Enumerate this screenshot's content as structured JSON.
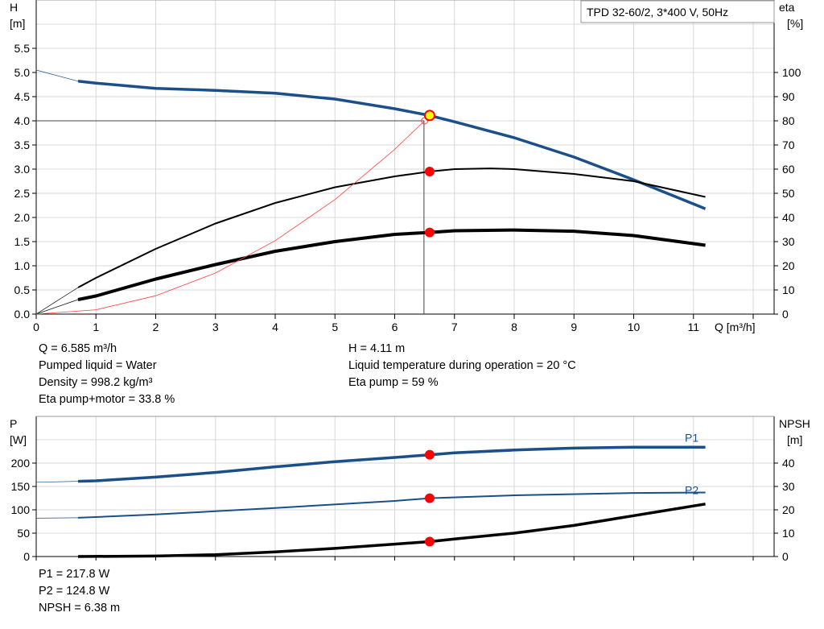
{
  "title_box": "TPD 32-60/2, 3*400 V, 50Hz",
  "chart_data": [
    {
      "type": "line",
      "xlabel": "Q [m³/h]",
      "x_ticks": [
        "0",
        "1",
        "2",
        "3",
        "4",
        "5",
        "6",
        "7",
        "8",
        "9",
        "10",
        "11"
      ],
      "xlim": [
        0,
        12.35
      ],
      "ylabel_left": [
        "H",
        "[m]"
      ],
      "ylim_left": [
        0,
        6.5
      ],
      "y_ticks_left": [
        "0.0",
        "0.5",
        "1.0",
        "1.5",
        "2.0",
        "2.5",
        "3.0",
        "3.5",
        "4.0",
        "4.5",
        "5.0",
        "5.5"
      ],
      "ylabel_right": [
        "eta",
        "[%]"
      ],
      "ylim_right": [
        0,
        130
      ],
      "y_ticks_right": [
        "0",
        "10",
        "20",
        "30",
        "40",
        "50",
        "60",
        "70",
        "80",
        "90",
        "100"
      ],
      "grid": true,
      "series": [
        {
          "key": "H",
          "axis": "left",
          "color": "#1a4f8a",
          "width": 3.5,
          "start": 0.7,
          "x": [
            0,
            0.7,
            1,
            2,
            3,
            4,
            5,
            6,
            6.585,
            7,
            8,
            9,
            10,
            11.2
          ],
          "y": [
            5.05,
            4.82,
            4.78,
            4.67,
            4.63,
            4.57,
            4.45,
            4.25,
            4.11,
            3.98,
            3.65,
            3.25,
            2.78,
            2.18
          ]
        },
        {
          "key": "eta_pump",
          "axis": "right",
          "color": "#000000",
          "width": 2,
          "start": 0.7,
          "x": [
            0,
            0.7,
            1,
            2,
            3,
            4,
            5,
            6,
            6.585,
            7,
            7.6,
            8,
            9,
            10,
            11.2
          ],
          "y": [
            0,
            11,
            15,
            27,
            37.5,
            46,
            52.5,
            57,
            59,
            60,
            60.3,
            60,
            58,
            55,
            48.5
          ]
        },
        {
          "key": "eta_pump_motor",
          "axis": "right",
          "color": "#000000",
          "width": 4,
          "start": 0.7,
          "x": [
            0,
            0.7,
            1,
            2,
            3,
            4,
            5,
            6,
            6.585,
            7,
            8,
            9,
            10,
            11.2
          ],
          "y": [
            0,
            6,
            7.5,
            14.5,
            20.5,
            26,
            30,
            33,
            33.8,
            34.5,
            34.8,
            34.3,
            32.5,
            28.5
          ]
        },
        {
          "key": "system_curve",
          "axis": "left",
          "color": "#ff4040",
          "width": 0.8,
          "start": 0,
          "x": [
            0,
            1,
            2,
            3,
            4,
            5,
            6,
            6.5
          ],
          "y": [
            0,
            0.09,
            0.38,
            0.85,
            1.52,
            2.37,
            3.41,
            4.0
          ]
        }
      ],
      "operating_point": {
        "Q": 6.585,
        "H": 4.11,
        "eta_pump": 59,
        "eta_pump_motor": 33.8
      },
      "crosshair": {
        "Q": 6.49,
        "H": 4.0
      }
    },
    {
      "type": "line",
      "xlim": [
        0,
        12.35
      ],
      "ylabel_left": [
        "P",
        "[W]"
      ],
      "ylim_left": [
        0,
        300
      ],
      "y_ticks_left": [
        "0",
        "50",
        "100",
        "150",
        "200"
      ],
      "ylabel_right": [
        "NPSH",
        "[m]"
      ],
      "ylim_right": [
        0,
        60
      ],
      "y_ticks_right": [
        "0",
        "10",
        "20",
        "30",
        "40"
      ],
      "grid": true,
      "series": [
        {
          "key": "P1",
          "name": "P1",
          "axis": "left",
          "color": "#1a4f8a",
          "width": 3.5,
          "start": 0.7,
          "x": [
            0,
            0.7,
            1,
            2,
            3,
            4,
            5,
            6,
            6.585,
            7,
            8,
            9,
            10,
            11.2
          ],
          "y": [
            159,
            161,
            162,
            170,
            180,
            192,
            203,
            212,
            217.8,
            222,
            228,
            232,
            234,
            234
          ]
        },
        {
          "key": "P2",
          "name": "P2",
          "axis": "left",
          "color": "#1a4f8a",
          "width": 2,
          "start": 0.7,
          "x": [
            0,
            0.7,
            2,
            4,
            6,
            6.585,
            8,
            10,
            11.2
          ],
          "y": [
            82,
            83,
            90,
            104,
            119,
            124.8,
            131,
            136,
            137
          ]
        },
        {
          "key": "NPSH",
          "axis": "right",
          "color": "#000000",
          "width": 3.5,
          "start": 0.7,
          "x": [
            0,
            0.7,
            2,
            3,
            4,
            5,
            6,
            6.585,
            7,
            8,
            9,
            10,
            11.2
          ],
          "y": [
            0,
            0,
            0.2,
            0.8,
            2,
            3.5,
            5.3,
            6.38,
            7.5,
            10,
            13.3,
            17.5,
            22.5
          ]
        }
      ],
      "operating_point": {
        "Q": 6.585,
        "P1": 217.8,
        "P2": 124.8,
        "NPSH": 6.38
      }
    }
  ],
  "info_top_left": [
    "Q = 6.585 m³/h",
    "Pumped liquid = Water",
    "Density = 998.2 kg/m³",
    "Eta pump+motor = 33.8 %"
  ],
  "info_top_right": [
    "H = 4.11 m",
    "Liquid temperature during operation = 20 °C",
    "Eta pump = 59 %"
  ],
  "info_bottom": [
    "P1 = 217.8 W",
    "P2 = 124.8 W",
    "NPSH = 6.38 m"
  ]
}
